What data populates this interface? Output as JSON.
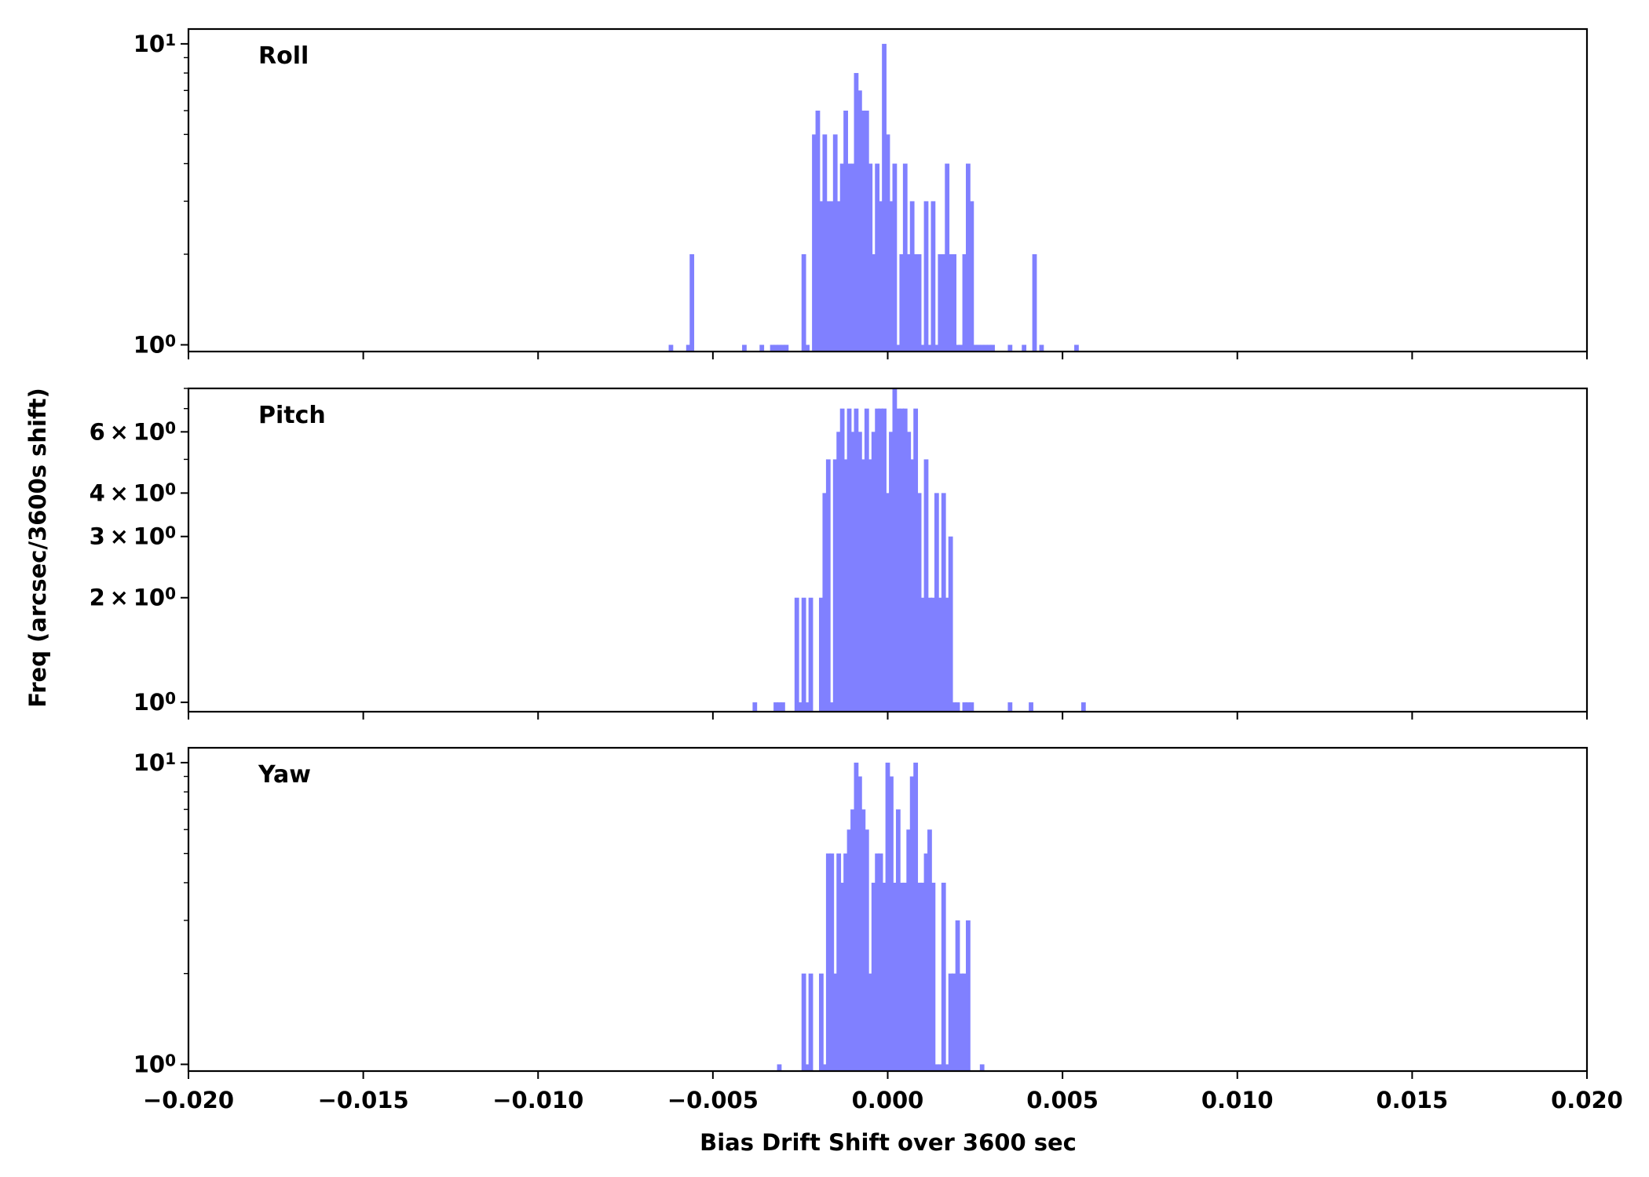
{
  "chart_data": {
    "type": "bar",
    "xlabel": "Bias Drift Shift over 3600 sec",
    "ylabel": "Freq (arcsec/3600s shift)",
    "xlim": [
      -0.02,
      0.02
    ],
    "x_ticks": [
      "−0.020",
      "−0.015",
      "−0.010",
      "−0.005",
      "0.000",
      "0.005",
      "0.010",
      "0.015",
      "0.020"
    ],
    "bar_color": "#8080ff",
    "bin_width": 0.00013,
    "y_scale": "log",
    "panels": [
      {
        "label": "Roll",
        "ylim": [
          0.95,
          11.2
        ],
        "y_ticks": [
          {
            "value": 1,
            "base": "10",
            "exp": "0"
          },
          {
            "value": 10,
            "base": "10",
            "exp": "1"
          }
        ],
        "x": [
          -0.0062,
          -0.0057,
          -0.0056,
          -0.0041,
          -0.0036,
          -0.0033,
          -0.0032,
          -0.0031,
          -0.003,
          -0.0029,
          -0.0024,
          -0.0023,
          -0.0021,
          -0.002,
          -0.0019,
          -0.0018,
          -0.0017,
          -0.0016,
          -0.0015,
          -0.0014,
          -0.0013,
          -0.0012,
          -0.0011,
          -0.001,
          -0.0009,
          -0.0008,
          -0.0007,
          -0.0006,
          -0.0005,
          -0.0004,
          -0.0003,
          -0.0002,
          -0.0001,
          0.0,
          0.0001,
          0.0002,
          0.0003,
          0.0004,
          0.0005,
          0.0006,
          0.0007,
          0.0008,
          0.0009,
          0.001,
          0.0011,
          0.0012,
          0.0013,
          0.0014,
          0.0015,
          0.0016,
          0.0017,
          0.0018,
          0.0019,
          0.002,
          0.0021,
          0.0022,
          0.0023,
          0.0024,
          0.0025,
          0.0026,
          0.0027,
          0.0028,
          0.0029,
          0.003,
          0.0035,
          0.0039,
          0.0042,
          0.0044,
          0.0054
        ],
        "values": [
          1,
          1,
          2,
          1,
          1,
          1,
          1,
          1,
          1,
          1,
          2,
          1,
          5,
          6,
          3,
          5,
          3,
          3,
          5,
          3,
          4,
          6,
          4,
          4,
          8,
          7,
          6,
          6,
          4,
          2,
          4,
          3,
          10,
          5,
          3,
          4,
          1,
          2,
          4,
          2,
          3,
          2,
          2,
          1,
          3,
          1,
          3,
          1,
          2,
          2,
          4,
          2,
          2,
          1,
          1,
          2,
          4,
          3,
          1,
          1,
          1,
          1,
          1,
          1,
          1,
          1,
          2,
          1,
          1
        ]
      },
      {
        "label": "Pitch",
        "ylim": [
          0.94,
          8.0
        ],
        "y_ticks": [
          {
            "value": 1,
            "base": "10",
            "exp": "0"
          },
          {
            "value": 2,
            "base": "2 × 10",
            "exp": "0"
          },
          {
            "value": 3,
            "base": "3 × 10",
            "exp": "0"
          },
          {
            "value": 4,
            "base": "4 × 10",
            "exp": "0"
          },
          {
            "value": 6,
            "base": "6 × 10",
            "exp": "0"
          }
        ],
        "x": [
          -0.0038,
          -0.0032,
          -0.0031,
          -0.003,
          -0.0026,
          -0.0025,
          -0.0024,
          -0.0023,
          -0.0022,
          -0.0019,
          -0.0018,
          -0.0017,
          -0.0016,
          -0.0015,
          -0.0014,
          -0.0013,
          -0.0012,
          -0.0011,
          -0.001,
          -0.0009,
          -0.0008,
          -0.0007,
          -0.0006,
          -0.0005,
          -0.0004,
          -0.0003,
          -0.0002,
          -0.0001,
          0.0,
          0.0001,
          0.0002,
          0.0003,
          0.0004,
          0.0005,
          0.0006,
          0.0007,
          0.0008,
          0.0009,
          0.001,
          0.0011,
          0.0012,
          0.0013,
          0.0014,
          0.0015,
          0.0016,
          0.0017,
          0.0018,
          0.0019,
          0.002,
          0.0022,
          0.0023,
          0.0024,
          0.0035,
          0.0041,
          0.0056
        ],
        "values": [
          1,
          1,
          1,
          1,
          2,
          1,
          2,
          1,
          2,
          2,
          4,
          5,
          1,
          5,
          6,
          7,
          5,
          7,
          6,
          7,
          6,
          5,
          7,
          5,
          6,
          7,
          7,
          7,
          4,
          6,
          8,
          7,
          7,
          7,
          6,
          5,
          7,
          4,
          2,
          5,
          2,
          2,
          4,
          2,
          4,
          2,
          3,
          1,
          1,
          1,
          1,
          1,
          1,
          1,
          1
        ]
      },
      {
        "label": "Yaw",
        "ylim": [
          0.95,
          11.2
        ],
        "y_ticks": [
          {
            "value": 1,
            "base": "10",
            "exp": "0"
          },
          {
            "value": 10,
            "base": "10",
            "exp": "1"
          }
        ],
        "x": [
          -0.0031,
          -0.0024,
          -0.0023,
          -0.0022,
          -0.0019,
          -0.0018,
          -0.0017,
          -0.0016,
          -0.0015,
          -0.0014,
          -0.0013,
          -0.0012,
          -0.0011,
          -0.001,
          -0.0009,
          -0.0008,
          -0.0007,
          -0.0006,
          -0.0005,
          -0.0004,
          -0.0003,
          -0.0002,
          -0.0001,
          0.0,
          0.0001,
          0.0002,
          0.0003,
          0.0004,
          0.0005,
          0.0006,
          0.0007,
          0.0008,
          0.0009,
          0.001,
          0.0011,
          0.0012,
          0.0013,
          0.0014,
          0.0015,
          0.0016,
          0.0017,
          0.0018,
          0.0019,
          0.002,
          0.0021,
          0.0022,
          0.0023,
          0.0027
        ],
        "values": [
          1,
          2,
          1,
          2,
          2,
          1,
          5,
          5,
          2,
          5,
          4,
          5,
          6,
          7,
          10,
          9,
          7,
          6,
          2,
          4,
          5,
          5,
          4,
          10,
          9,
          4,
          7,
          4,
          4,
          6,
          9,
          10,
          4,
          4,
          5,
          6,
          4,
          1,
          1,
          4,
          1,
          2,
          2,
          3,
          2,
          2,
          3,
          1
        ]
      }
    ]
  }
}
